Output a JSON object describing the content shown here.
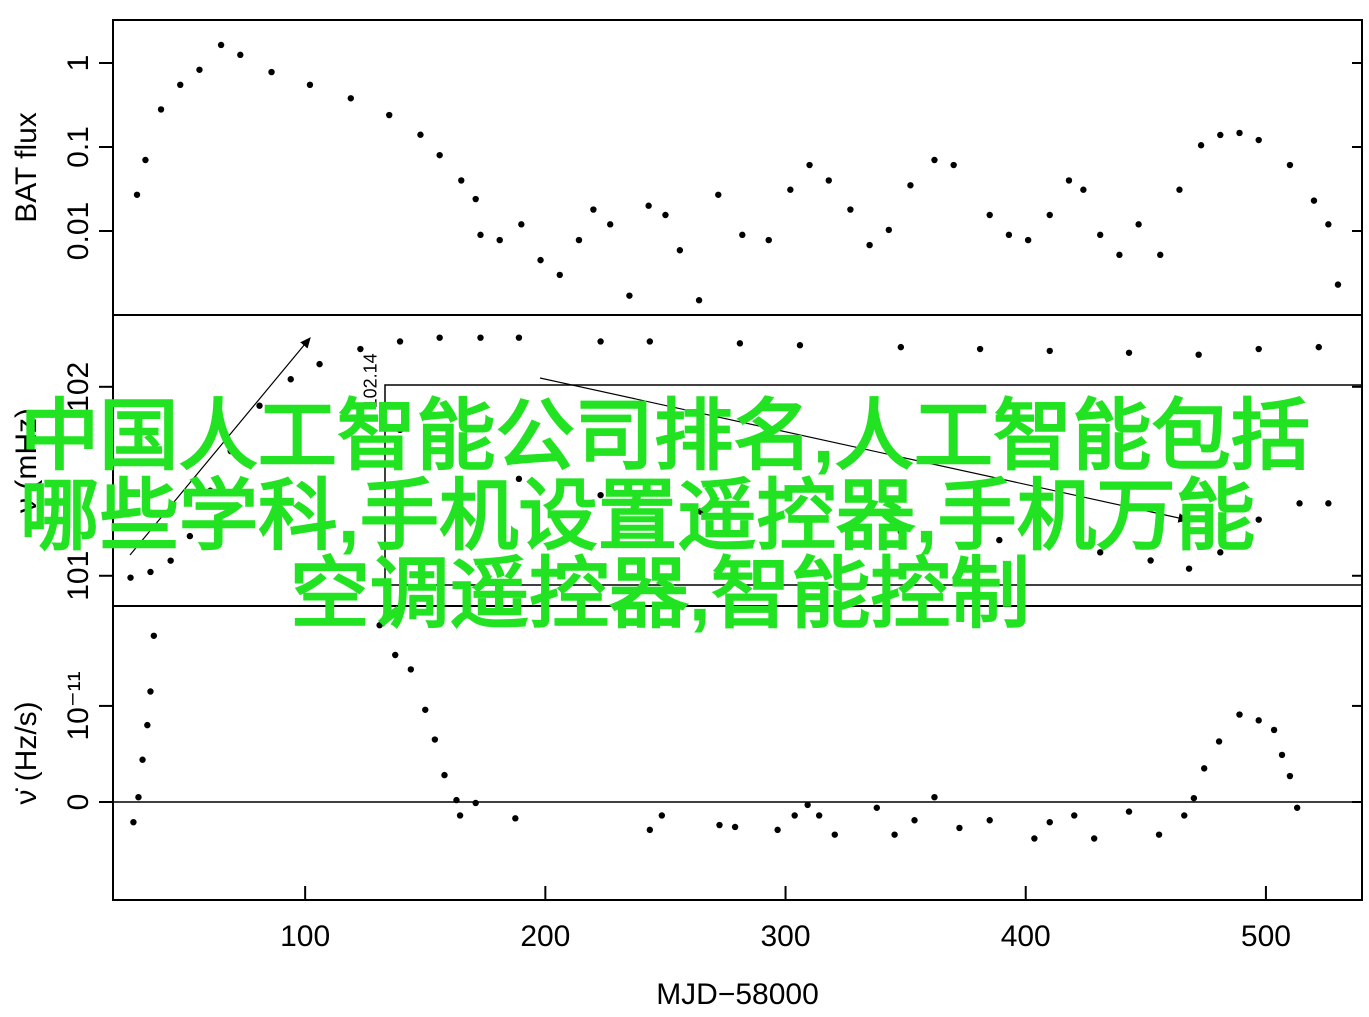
{
  "chart_data": [
    {
      "type": "scatter",
      "ylabel": "BAT flux",
      "ylog": true,
      "color": "#000000",
      "xlim": [
        20,
        540
      ],
      "ylim": [
        0.001,
        3.25
      ],
      "yticks": [
        0.01,
        0.1,
        1
      ],
      "x": [
        30,
        33.5,
        40,
        48,
        56,
        65,
        73,
        86,
        102,
        119,
        135,
        148,
        156,
        165,
        171,
        173,
        181,
        190,
        198,
        206,
        214,
        220,
        227,
        235,
        243,
        250,
        256,
        264,
        272,
        282,
        293,
        302,
        310,
        318,
        327,
        335,
        343,
        352,
        362,
        370,
        385,
        393,
        401,
        410,
        418,
        424,
        431,
        439,
        447,
        456,
        464,
        473,
        481,
        489,
        497,
        510,
        520,
        526,
        530
      ],
      "values": [
        0.027,
        0.07,
        0.28,
        0.55,
        0.83,
        1.64,
        1.25,
        0.78,
        0.55,
        0.38,
        0.24,
        0.14,
        0.08,
        0.04,
        0.024,
        0.009,
        0.0078,
        0.012,
        0.0045,
        0.003,
        0.0078,
        0.018,
        0.012,
        0.0017,
        0.02,
        0.0155,
        0.0059,
        0.0015,
        0.027,
        0.009,
        0.0078,
        0.031,
        0.061,
        0.04,
        0.018,
        0.0068,
        0.0103,
        0.035,
        0.07,
        0.061,
        0.0155,
        0.009,
        0.0078,
        0.0155,
        0.04,
        0.031,
        0.009,
        0.0052,
        0.012,
        0.0052,
        0.031,
        0.105,
        0.139,
        0.147,
        0.121,
        0.061,
        0.023,
        0.012,
        0.0023
      ]
    },
    {
      "type": "scatter",
      "ylabel": "ν (mHz)",
      "color": "#000000",
      "xlim": [
        20,
        540
      ],
      "ylim": [
        100.84,
        102.38
      ],
      "yticks": [
        101,
        102
      ],
      "x": [
        27.3,
        35.6,
        44,
        52,
        60.5,
        69,
        81,
        94,
        106,
        123,
        139.5,
        156,
        173,
        189,
        223,
        243.5,
        281,
        306,
        348,
        381,
        410,
        443,
        472,
        497,
        522
      ],
      "values": [
        100.99,
        101.02,
        101.08,
        101.21,
        101.45,
        101.66,
        101.9,
        102.04,
        102.12,
        102.2,
        102.24,
        102.26,
        102.26,
        102.26,
        102.24,
        102.24,
        102.23,
        102.22,
        102.21,
        102.2,
        102.19,
        102.18,
        102.17,
        102.2,
        102.21
      ]
    },
    {
      "type": "scatter",
      "ylabel": "ν̇ (Hz/s)",
      "xlabel": "MJD−58000",
      "zero_line": true,
      "color": "#000000",
      "xlim": [
        20,
        540
      ],
      "ylim": [
        -1.02e-11,
        2.04e-11
      ],
      "yticks": [
        0,
        {
          "value": 1e-11,
          "label": "10⁻¹¹"
        }
      ],
      "xticks": [
        100,
        200,
        300,
        400,
        500
      ],
      "x": [
        28.5,
        30.6,
        32.3,
        34.3,
        35.6,
        37,
        131,
        137.5,
        144,
        150,
        154,
        158,
        163,
        164.5,
        171,
        187.5,
        243.5,
        248.5,
        272.5,
        279,
        296.7,
        303.8,
        309.2,
        314,
        320.5,
        338,
        345.4,
        353.7,
        362,
        372.4,
        385,
        403.6,
        410,
        420.2,
        428.5,
        443,
        455.5,
        466,
        470,
        474.3,
        480.5,
        489,
        497,
        503.4,
        506.7,
        510,
        513
      ],
      "values": [
        -2.1e-12,
        5e-13,
        4.4e-12,
        8e-12,
        1.15e-11,
        1.73e-11,
        1.84e-11,
        1.53e-11,
        1.38e-11,
        9.6e-12,
        6.5e-12,
        2.8e-12,
        2e-13,
        -1.4e-12,
        -1e-13,
        -1.7e-12,
        -2.9e-12,
        -1.4e-12,
        -2.4e-12,
        -2.6e-12,
        -2.9e-12,
        -1.4e-12,
        -3e-13,
        -1.4e-12,
        -3.4e-12,
        -6e-13,
        -3.4e-12,
        -1.9e-12,
        5e-13,
        -2.7e-12,
        -1.9e-12,
        -3.8e-12,
        -2.1e-12,
        -1.4e-12,
        -3.8e-12,
        -1e-12,
        -3.4e-12,
        -1.4e-12,
        4e-13,
        3.5e-12,
        6.3e-12,
        9.1e-12,
        8.5e-12,
        7.5e-12,
        4.9e-12,
        2.7e-12,
        -6e-13
      ]
    },
    {
      "type": "scatter",
      "color": "#000000",
      "xlim": [
        20,
        540
      ],
      "ylim": [
        102.115,
        102.145
      ],
      "yticks": [
        102.14
      ],
      "x": [
        139.5,
        160,
        189,
        223,
        264.6,
        306,
        348,
        389,
        431,
        452,
        468,
        481,
        497,
        514,
        526
      ],
      "values": [
        102.134,
        102.131,
        102.128,
        102.126,
        102.124,
        102.123,
        102.1215,
        102.1205,
        102.119,
        102.118,
        102.117,
        102.119,
        102.123,
        102.125,
        102.125
      ]
    }
  ],
  "overlay": {
    "lines": [
      "中国人工智能公司排名,人工智能包括",
      "哪些学科,手机设置遥控器,手机万能",
      "空调遥控器,智能控制"
    ]
  }
}
